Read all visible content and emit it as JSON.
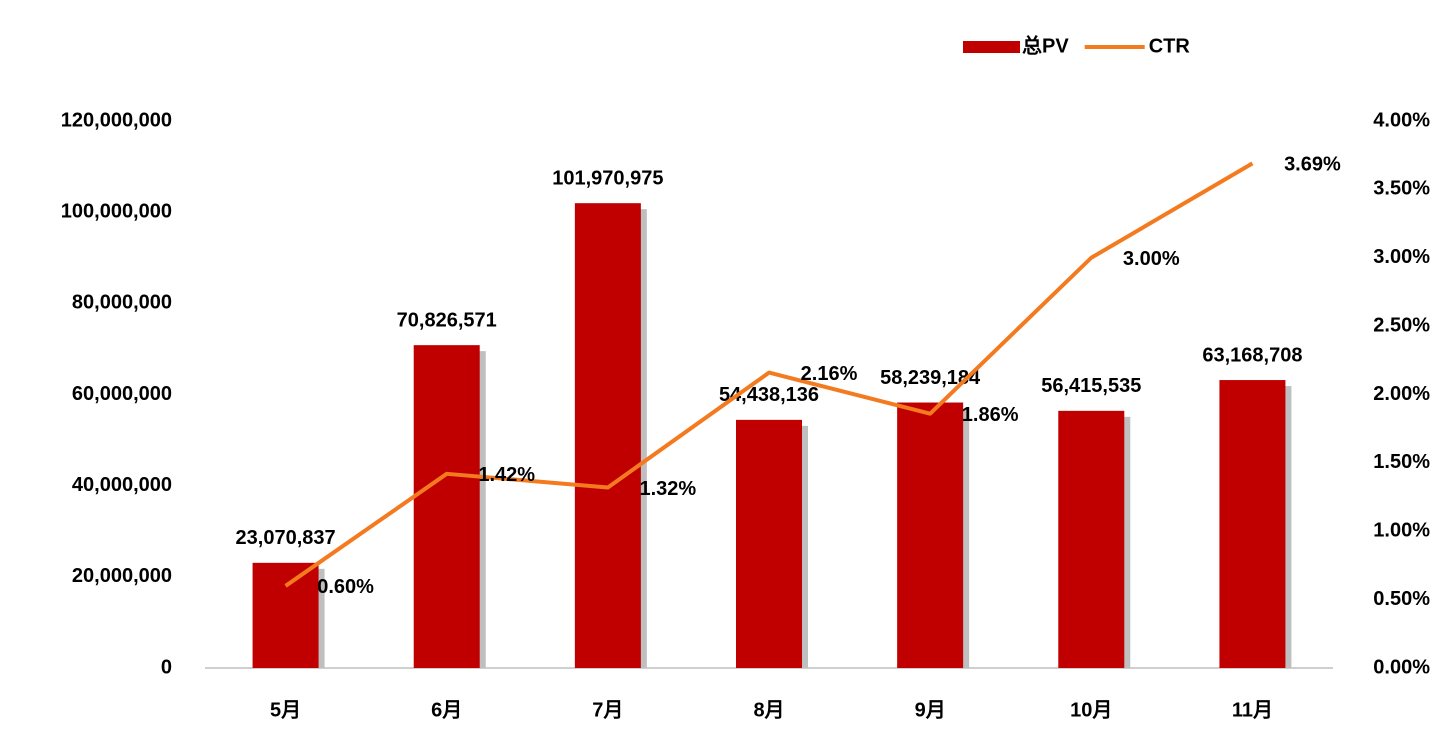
{
  "chart_data": {
    "type": "bar-line",
    "categories": [
      "5月",
      "6月",
      "7月",
      "8月",
      "9月",
      "10月",
      "11月"
    ],
    "series": [
      {
        "name": "总PV",
        "type": "bar",
        "color": "#c00000",
        "values": [
          23070837,
          70826571,
          101970975,
          54438136,
          58239184,
          56415535,
          63168708
        ],
        "value_labels": [
          "23,070,837",
          "70,826,571",
          "101,970,975",
          "54,438,136",
          "58,239,184",
          "56,415,535",
          "63,168,708"
        ]
      },
      {
        "name": "CTR",
        "type": "line",
        "axis": "y2",
        "color": "#f47a1f",
        "values": [
          0.6,
          1.42,
          1.32,
          2.16,
          1.86,
          3.0,
          3.69
        ],
        "value_labels": [
          "0.60%",
          "1.42%",
          "1.32%",
          "2.16%",
          "1.86%",
          "3.00%",
          "3.69%"
        ]
      }
    ],
    "ylim": [
      0,
      120000000
    ],
    "yticks": [
      0,
      {
        "value": 20000000,
        "label": "20,000,000"
      },
      {
        "value": 40000000,
        "label": "40,000,000"
      },
      {
        "value": 60000000,
        "label": "60,000,000"
      },
      {
        "value": 80000000,
        "label": "80,000,000"
      },
      {
        "value": 100000000,
        "label": "100,000,000"
      },
      {
        "value": 120000000,
        "label": "120,000,000"
      }
    ],
    "y2lim": [
      0,
      4
    ],
    "y2ticks": [
      {
        "value": 0,
        "label": "0.00%"
      },
      {
        "value": 0.5,
        "label": "0.50%"
      },
      {
        "value": 1,
        "label": "1.00%"
      },
      {
        "value": 1.5,
        "label": "1.50%"
      },
      {
        "value": 2,
        "label": "2.00%"
      },
      {
        "value": 2.5,
        "label": "2.50%"
      },
      {
        "value": 3,
        "label": "3.00%"
      },
      {
        "value": 3.5,
        "label": "3.50%"
      },
      {
        "value": 4,
        "label": "4.00%"
      }
    ],
    "grid": false,
    "legend": "top-right"
  }
}
